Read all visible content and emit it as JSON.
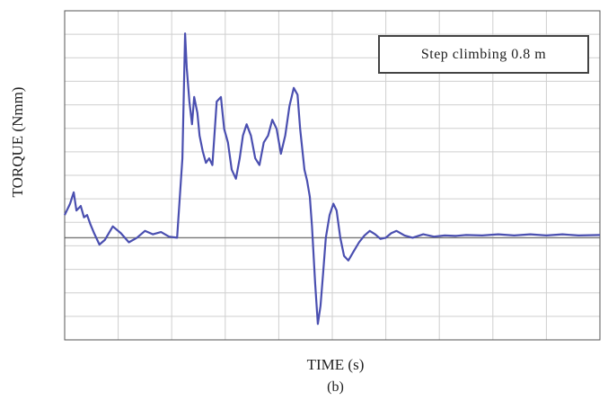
{
  "chart_data": {
    "type": "line",
    "xlabel": "TIME (s)",
    "ylabel": "TORQUE (Nmm)",
    "caption": "(b)",
    "annotation": "Step climbing 0.8 m",
    "grid": true,
    "x_ticks": 10,
    "y_ticks": 14,
    "xlim": [
      0,
      10
    ],
    "ylim": [
      -4.5,
      10
    ],
    "colors": {
      "line": "#4a4fb0",
      "grid": "#cfcfcf",
      "zero": "#777777",
      "frame": "#555555"
    },
    "series": [
      {
        "x": [
          0,
          0.1,
          0.17,
          0.22,
          0.3,
          0.36,
          0.42,
          0.48,
          0.55,
          0.65,
          0.75,
          0.9,
          1.05,
          1.2,
          1.35,
          1.5,
          1.65,
          1.8,
          1.95,
          2.1,
          2.2,
          2.25,
          2.28,
          2.33,
          2.38,
          2.42,
          2.48,
          2.52,
          2.58,
          2.64,
          2.7,
          2.76,
          2.84,
          2.92,
          2.98,
          3.05,
          3.12,
          3.2,
          3.27,
          3.33,
          3.4,
          3.48,
          3.56,
          3.64,
          3.72,
          3.8,
          3.88,
          3.96,
          4.04,
          4.12,
          4.2,
          4.28,
          4.35,
          4.4,
          4.48,
          4.53,
          4.58,
          4.62,
          4.68,
          4.73,
          4.78,
          4.83,
          4.88,
          4.95,
          5.02,
          5.08,
          5.15,
          5.22,
          5.3,
          5.4,
          5.5,
          5.6,
          5.7,
          5.8,
          5.9,
          6.0,
          6.1,
          6.2,
          6.35,
          6.5,
          6.7,
          6.9,
          7.1,
          7.3,
          7.5,
          7.8,
          8.1,
          8.4,
          8.7,
          9.0,
          9.3,
          9.6,
          10.0
        ],
        "y": [
          1.0,
          1.5,
          2.0,
          1.2,
          1.4,
          0.9,
          1.0,
          0.6,
          0.2,
          -0.3,
          -0.1,
          0.5,
          0.2,
          -0.2,
          0.0,
          0.3,
          0.15,
          0.25,
          0.05,
          0.0,
          3.5,
          9.0,
          7.5,
          6.0,
          5.0,
          6.2,
          5.5,
          4.5,
          3.8,
          3.3,
          3.5,
          3.2,
          6.0,
          6.2,
          4.8,
          4.2,
          3.0,
          2.6,
          3.5,
          4.5,
          5.0,
          4.5,
          3.5,
          3.2,
          4.2,
          4.5,
          5.2,
          4.8,
          3.7,
          4.5,
          5.8,
          6.6,
          6.3,
          4.8,
          3.0,
          2.5,
          1.8,
          0.5,
          -2.0,
          -3.8,
          -3.0,
          -1.5,
          0.0,
          1.0,
          1.5,
          1.2,
          0.0,
          -0.8,
          -1.0,
          -0.6,
          -0.2,
          0.1,
          0.3,
          0.15,
          -0.05,
          0.0,
          0.2,
          0.3,
          0.1,
          0.0,
          0.15,
          0.05,
          0.1,
          0.08,
          0.12,
          0.1,
          0.15,
          0.1,
          0.15,
          0.1,
          0.15,
          0.1,
          0.12
        ]
      }
    ]
  }
}
